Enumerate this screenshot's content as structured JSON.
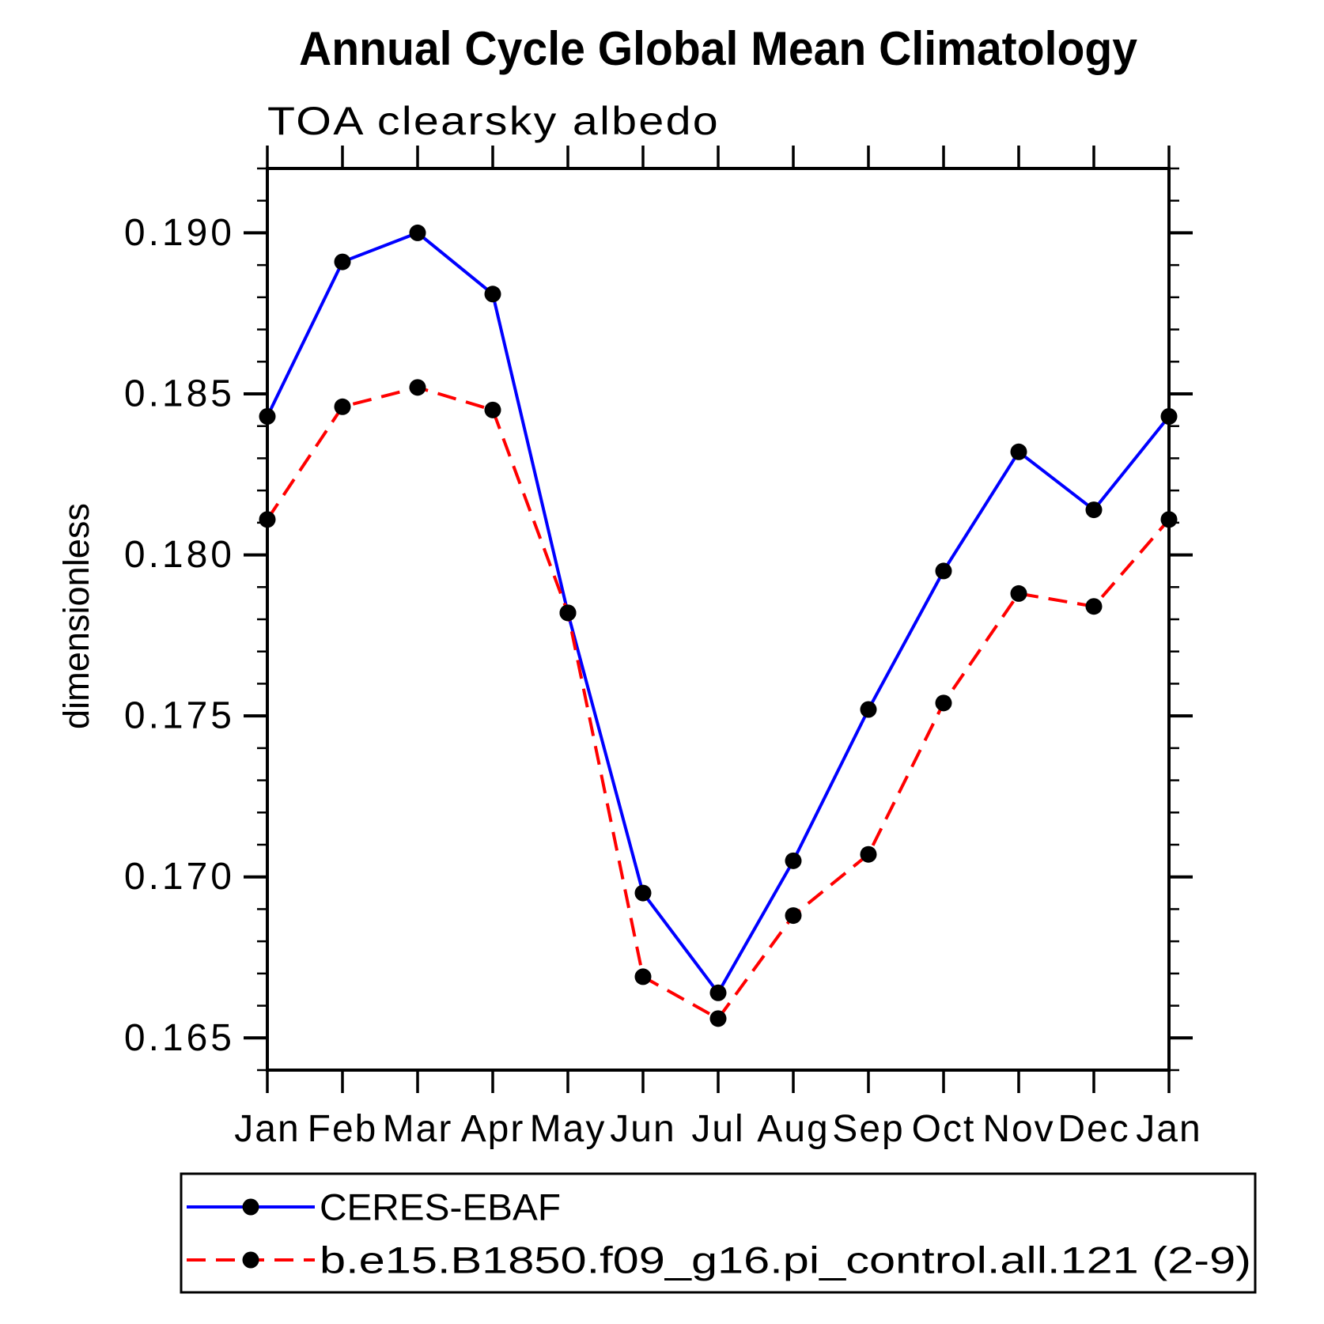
{
  "chart_data": {
    "type": "line",
    "title": "Annual Cycle Global Mean Climatology",
    "subtitle": "TOA clearsky albedo",
    "ylabel": "dimensionless",
    "categories": [
      "Jan",
      "Feb",
      "Mar",
      "Apr",
      "May",
      "Jun",
      "Jul",
      "Aug",
      "Sep",
      "Oct",
      "Nov",
      "Dec",
      "Jan"
    ],
    "series": [
      {
        "name": "CERES-EBAF",
        "color": "#0000ff",
        "line_style": "solid",
        "marker": "filled-black-circle",
        "values": [
          0.1843,
          0.1891,
          0.19,
          0.1881,
          0.1782,
          0.1695,
          0.1664,
          0.1705,
          0.1752,
          0.1795,
          0.1832,
          0.1814,
          0.1843
        ]
      },
      {
        "name": "b.e15.B1850.f09_g16.pi_control.all.121 (2-9)",
        "color": "#ff0000",
        "line_style": "dashed",
        "marker": "filled-black-circle",
        "values": [
          0.1811,
          0.1846,
          0.1852,
          0.1845,
          0.1782,
          0.1669,
          0.1656,
          0.1688,
          0.1707,
          0.1754,
          0.1788,
          0.1784,
          0.1811
        ]
      }
    ],
    "ylim": [
      0.164,
      0.192
    ],
    "yticks_major": [
      0.165,
      0.17,
      0.175,
      0.18,
      0.185,
      0.19
    ],
    "ytick_labels": [
      "0.165",
      "0.170",
      "0.175",
      "0.180",
      "0.185",
      "0.190"
    ],
    "ytick_minor_step": 0.001,
    "xlabel": "",
    "grid": false,
    "legend_position": "bottom-box",
    "axis_color": "#000000",
    "marker_color": "#000000"
  }
}
